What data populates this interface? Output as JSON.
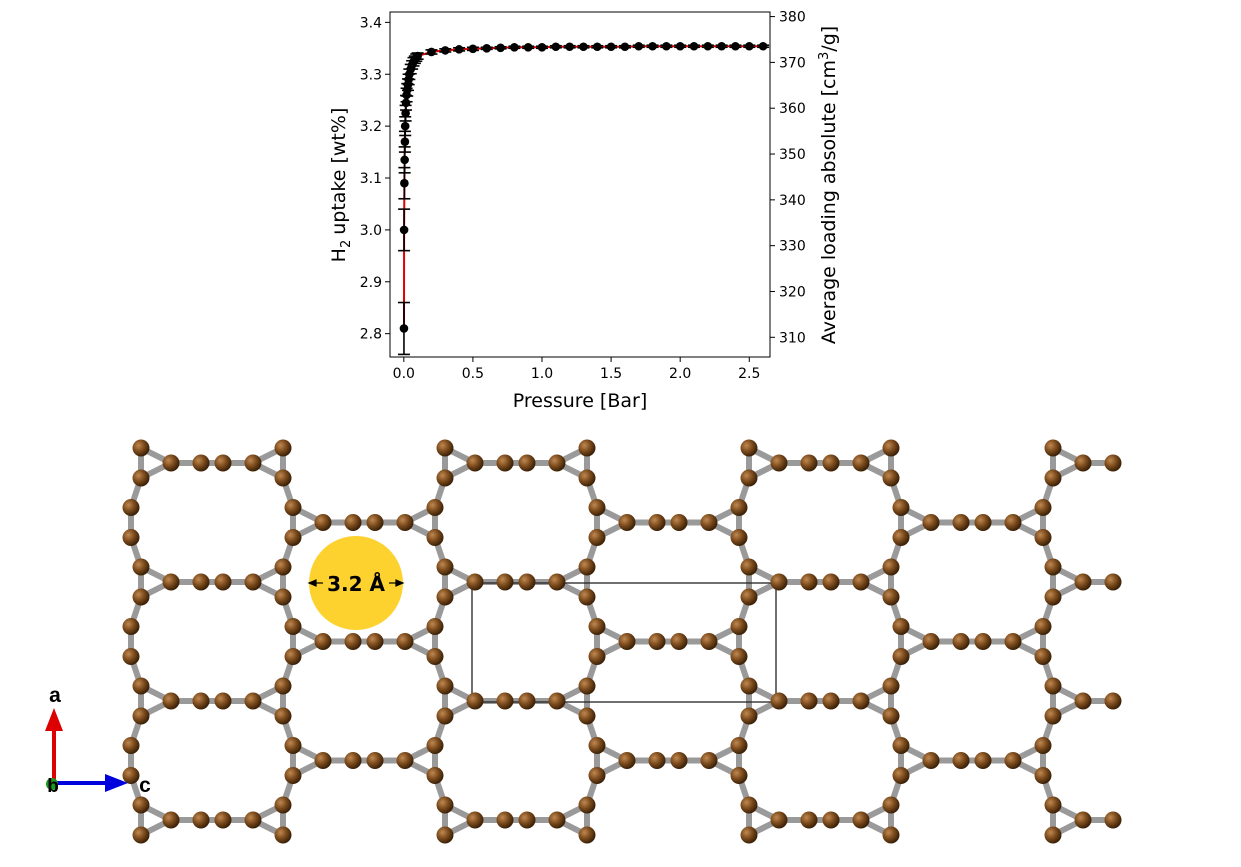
{
  "chart_data": {
    "type": "scatter",
    "xlabel": "Pressure [Bar]",
    "ylabel": "uptake [wt%]",
    "ylabel_prefix": "H",
    "ylabel_sub": "2",
    "y2label": "Average loading absolute [cm",
    "y2label_sup": "3",
    "y2label_suffix": "/g]",
    "xlim": [
      -0.1,
      2.65
    ],
    "ylim": [
      2.755,
      3.42
    ],
    "y2lim": [
      305.7,
      381.0
    ],
    "xticks": [
      "0.0",
      "0.5",
      "1.0",
      "1.5",
      "2.0",
      "2.5"
    ],
    "yticks": [
      "2.8",
      "2.9",
      "3.0",
      "3.1",
      "3.2",
      "3.3",
      "3.4"
    ],
    "y2ticks": [
      "310",
      "320",
      "330",
      "340",
      "350",
      "360",
      "370",
      "380"
    ],
    "grid": false,
    "line_color": "#e00000",
    "marker_color": "#000000",
    "series": [
      {
        "x": [
          0.001,
          0.002,
          0.004,
          0.006,
          0.008,
          0.01,
          0.013,
          0.016,
          0.02,
          0.025,
          0.03,
          0.035,
          0.04,
          0.05,
          0.06,
          0.07,
          0.08,
          0.09,
          0.1,
          0.2,
          0.3,
          0.4,
          0.5,
          0.6,
          0.7,
          0.8,
          0.9,
          1.0,
          1.1,
          1.2,
          1.3,
          1.4,
          1.5,
          1.6,
          1.7,
          1.8,
          1.9,
          2.0,
          2.1,
          2.2,
          2.3,
          2.4,
          2.5,
          2.6
        ],
        "y": [
          2.81,
          3.0,
          3.09,
          3.135,
          3.17,
          3.2,
          3.225,
          3.245,
          3.26,
          3.27,
          3.28,
          3.29,
          3.3,
          3.31,
          3.318,
          3.324,
          3.328,
          3.332,
          3.335,
          3.343,
          3.346,
          3.348,
          3.349,
          3.35,
          3.351,
          3.352,
          3.352,
          3.352,
          3.353,
          3.353,
          3.353,
          3.353,
          3.353,
          3.353,
          3.354,
          3.354,
          3.354,
          3.354,
          3.354,
          3.354,
          3.354,
          3.354,
          3.354,
          3.354
        ],
        "yerr": [
          0.05,
          0.04,
          0.03,
          0.025,
          0.02,
          0.018,
          0.015,
          0.014,
          0.013,
          0.012,
          0.011,
          0.01,
          0.01,
          0.009,
          0.008,
          0.008,
          0.007,
          0.007,
          0.006,
          0.004,
          0.003,
          0.003,
          0.003,
          0.002,
          0.002,
          0.002,
          0.002,
          0.002,
          0.002,
          0.002,
          0.002,
          0.002,
          0.002,
          0.002,
          0.002,
          0.002,
          0.002,
          0.002,
          0.002,
          0.002,
          0.002,
          0.002,
          0.002,
          0.002
        ]
      }
    ]
  },
  "structure": {
    "pore_label": "3.2 Å",
    "pore_color": "#fdd12e",
    "atom_color": "#7a4a1c",
    "bond_color": "#9a9a9a",
    "axis_a_label": "a",
    "axis_b_label": "b",
    "axis_c_label": "c",
    "axis_a_color": "#dd0000",
    "axis_b_color": "#1a9a1a",
    "axis_c_color": "#0000dd"
  }
}
